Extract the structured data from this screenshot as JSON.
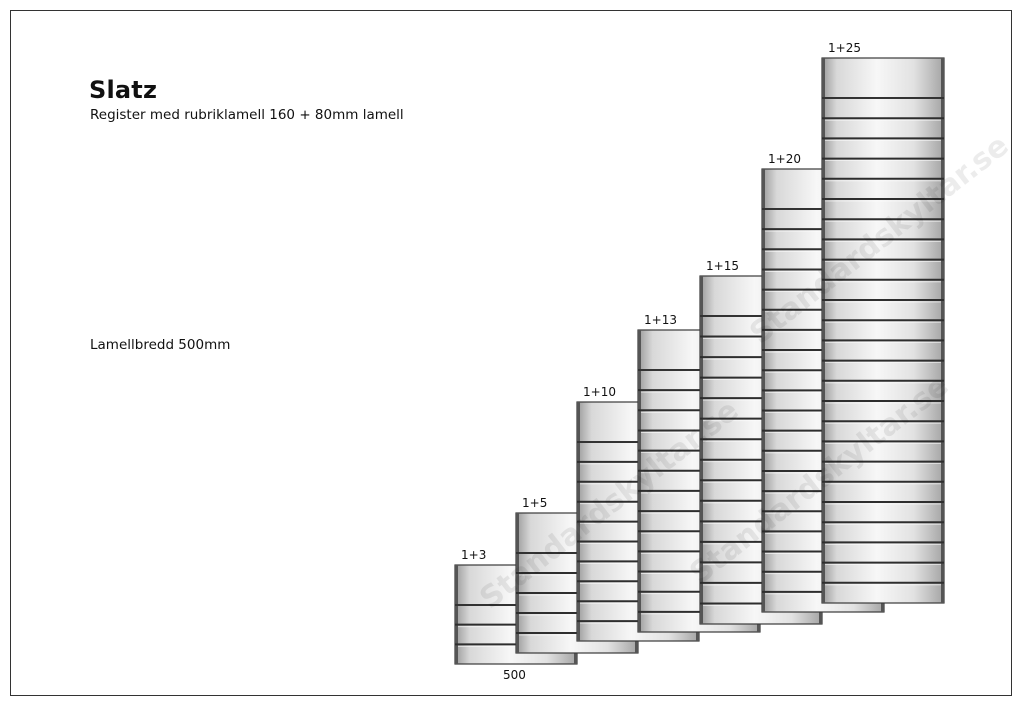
{
  "header": {
    "title": "Slatz",
    "subtitle": "Register med rubriklamell 160 + 80mm lamell"
  },
  "notes": {
    "width": "Lamellbredd 500mm",
    "dimension": "500"
  },
  "watermark": "Standardskyltar.se",
  "units": [
    {
      "label": "1+3",
      "slats": 3
    },
    {
      "label": "1+5",
      "slats": 5
    },
    {
      "label": "1+10",
      "slats": 10
    },
    {
      "label": "1+13",
      "slats": 13
    },
    {
      "label": "1+15",
      "slats": 15
    },
    {
      "label": "1+20",
      "slats": 20
    },
    {
      "label": "1+25",
      "slats": 25
    }
  ]
}
